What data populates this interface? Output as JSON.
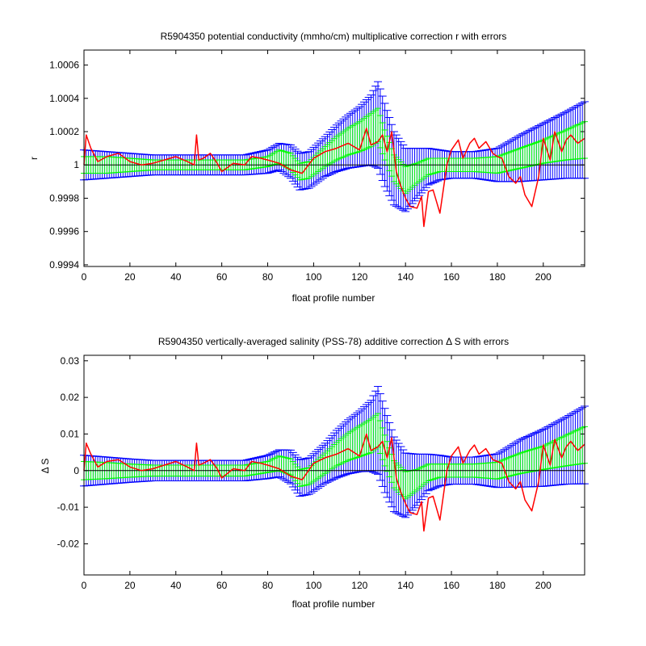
{
  "chart_data": [
    {
      "type": "line",
      "title": "R5904350 potential conductivity (mmho/cm) multiplicative correction r with errors",
      "xlabel": "float profile number",
      "ylabel": "r",
      "xlim": [
        0,
        218
      ],
      "ylim": [
        0.99939,
        1.00069
      ],
      "xticks": [
        0,
        20,
        40,
        60,
        80,
        100,
        120,
        140,
        160,
        180,
        200
      ],
      "xtick_labels": [
        "0",
        "20",
        "40",
        "60",
        "80",
        "100",
        "120",
        "140",
        "160",
        "180",
        "200"
      ],
      "yticks": [
        0.9994,
        0.9996,
        0.9998,
        1.0,
        1.0002,
        1.0004,
        1.0006
      ],
      "ytick_labels": [
        "0.9994",
        "0.9996",
        "0.9998",
        "1",
        "1.0002",
        "1.0004",
        "1.0006"
      ],
      "reference_line": 1.0,
      "colors": {
        "outer_error": "#0000ff",
        "inner_error": "#00ff00",
        "series": "#ff0000",
        "reference": "#000000"
      },
      "grid": false,
      "series": [
        {
          "x": [
            0,
            10,
            20,
            30,
            40,
            50,
            60,
            70,
            80,
            85,
            90,
            94,
            98,
            105,
            110,
            115,
            120,
            125,
            128,
            131,
            135,
            140,
            145,
            150,
            155,
            160,
            170,
            180,
            190,
            200,
            210,
            218
          ],
          "fit": [
            1.0,
            1.0,
            1.0,
            1.0,
            1.0,
            1.0,
            1.0,
            1.0,
            1.00002,
            1.00005,
            1.00002,
            0.99996,
            0.99997,
            1.00005,
            1.0001,
            1.00014,
            1.00017,
            1.00021,
            1.00024,
            1.00012,
            0.99998,
            0.99991,
            0.99995,
            0.99999,
            1.0,
            1.0,
            1.0,
            1.0,
            1.00004,
            1.00008,
            1.00012,
            1.00015
          ],
          "inner_err": [
            5e-05,
            5e-05,
            4e-05,
            3e-05,
            3e-05,
            3e-05,
            3e-05,
            3e-05,
            3e-05,
            4e-05,
            5e-05,
            5e-05,
            5e-05,
            6e-05,
            7e-05,
            8e-05,
            9e-05,
            0.0001,
            0.0001,
            9e-05,
            8e-05,
            8e-05,
            6e-05,
            5e-05,
            4e-05,
            4e-05,
            4e-05,
            5e-05,
            6e-05,
            7e-05,
            9e-05,
            0.00011
          ],
          "outer_err": [
            9e-05,
            8e-05,
            7e-05,
            6e-05,
            6e-05,
            6e-05,
            6e-05,
            6e-05,
            7e-05,
            8e-05,
            0.0001,
            0.00011,
            0.00011,
            0.00012,
            0.00014,
            0.00016,
            0.00018,
            0.00021,
            0.00026,
            0.00025,
            0.00022,
            0.00019,
            0.00015,
            0.00011,
            9e-05,
            8e-05,
            8e-05,
            0.0001,
            0.00014,
            0.00017,
            0.0002,
            0.00023
          ]
        },
        {
          "x": [
            0,
            1,
            3,
            6,
            10,
            15,
            20,
            25,
            30,
            35,
            40,
            45,
            48,
            49,
            50,
            52,
            55,
            58,
            60,
            65,
            70,
            73,
            77,
            80,
            85,
            90,
            95,
            100,
            105,
            110,
            115,
            120,
            123,
            125,
            128,
            130,
            132,
            134,
            136,
            138,
            140,
            142,
            145,
            147,
            148,
            150,
            152,
            155,
            158,
            160,
            163,
            165,
            168,
            170,
            172,
            175,
            178,
            180,
            182,
            185,
            188,
            190,
            192,
            195,
            198,
            200,
            203,
            205,
            208,
            210,
            212,
            215,
            218
          ],
          "values": [
            1.0,
            1.00018,
            1.0001,
            1.00002,
            1.00005,
            1.00007,
            1.00002,
            1.0,
            1.00001,
            1.00003,
            1.00005,
            1.00002,
            1.0,
            1.00018,
            1.00003,
            1.00004,
            1.00007,
            1.00001,
            0.99996,
            1.00001,
            1.0,
            1.00005,
            1.00004,
            1.00003,
            1.00001,
            0.99997,
            0.99995,
            1.00004,
            1.00008,
            1.0001,
            1.00013,
            1.00009,
            1.00022,
            1.00012,
            1.00014,
            1.00018,
            1.00008,
            1.0002,
            0.99996,
            0.99987,
            0.9998,
            0.99975,
            0.99974,
            0.99981,
            0.99963,
            0.99984,
            0.99985,
            0.99971,
            1.0,
            1.00009,
            1.00015,
            1.00004,
            1.00013,
            1.00016,
            1.0001,
            1.00014,
            1.00007,
            1.00005,
            1.00004,
            0.99993,
            0.99989,
            0.99993,
            0.99982,
            0.99975,
            0.99993,
            1.00016,
            1.00003,
            1.0002,
            1.00008,
            1.00015,
            1.00018,
            1.00013,
            1.00016
          ]
        }
      ]
    },
    {
      "type": "line",
      "title": "R5904350 vertically-averaged salinity (PSS-78) additive correction Δ S with errors",
      "xlabel": "float profile number",
      "ylabel": "Δ S",
      "xlim": [
        0,
        218
      ],
      "ylim": [
        -0.0285,
        0.0315
      ],
      "xticks": [
        0,
        20,
        40,
        60,
        80,
        100,
        120,
        140,
        160,
        180,
        200
      ],
      "xtick_labels": [
        "0",
        "20",
        "40",
        "60",
        "80",
        "100",
        "120",
        "140",
        "160",
        "180",
        "200"
      ],
      "yticks": [
        -0.02,
        -0.01,
        0.0,
        0.01,
        0.02,
        0.03
      ],
      "ytick_labels": [
        "-0.02",
        "-0.01",
        "0",
        "0.01",
        "0.02",
        "0.03"
      ],
      "reference_line": 0.0,
      "colors": {
        "outer_error": "#0000ff",
        "inner_error": "#00ff00",
        "series": "#ff0000",
        "reference": "#000000"
      },
      "grid": false,
      "series": [
        {
          "x": [
            0,
            10,
            20,
            30,
            40,
            50,
            60,
            70,
            80,
            85,
            90,
            94,
            98,
            105,
            110,
            115,
            120,
            125,
            128,
            131,
            135,
            140,
            145,
            150,
            155,
            160,
            170,
            180,
            190,
            200,
            210,
            218
          ],
          "fit": [
            0.0,
            0.0,
            0.0,
            0.0,
            0.0,
            0.0,
            0.0,
            0.0,
            0.001,
            0.002,
            0.001,
            -0.002,
            -0.0015,
            0.002,
            0.0045,
            0.0065,
            0.008,
            0.0095,
            0.011,
            0.0055,
            -0.001,
            -0.004,
            -0.0025,
            -0.0005,
            0.0,
            0.0,
            0.0,
            0.0,
            0.002,
            0.0035,
            0.0055,
            0.007
          ],
          "inner_err": [
            0.0025,
            0.0022,
            0.0018,
            0.0015,
            0.0015,
            0.0015,
            0.0015,
            0.0015,
            0.0015,
            0.002,
            0.0022,
            0.0023,
            0.0023,
            0.0028,
            0.0032,
            0.0037,
            0.0042,
            0.0046,
            0.0046,
            0.0042,
            0.0037,
            0.0037,
            0.0028,
            0.0023,
            0.0018,
            0.0018,
            0.0018,
            0.0023,
            0.0028,
            0.0032,
            0.0042,
            0.005
          ],
          "outer_err": [
            0.0042,
            0.0037,
            0.0032,
            0.0028,
            0.0028,
            0.0028,
            0.0028,
            0.0028,
            0.0032,
            0.0037,
            0.0046,
            0.005,
            0.005,
            0.0055,
            0.0065,
            0.0074,
            0.0083,
            0.0097,
            0.012,
            0.0115,
            0.0102,
            0.0088,
            0.007,
            0.005,
            0.0042,
            0.0037,
            0.0037,
            0.0046,
            0.0065,
            0.0078,
            0.0092,
            0.0106
          ]
        },
        {
          "x": [
            0,
            1,
            3,
            6,
            10,
            15,
            20,
            25,
            30,
            35,
            40,
            45,
            48,
            49,
            50,
            52,
            55,
            58,
            60,
            65,
            70,
            73,
            77,
            80,
            85,
            90,
            95,
            100,
            105,
            110,
            115,
            120,
            123,
            125,
            128,
            130,
            132,
            134,
            136,
            138,
            140,
            142,
            145,
            147,
            148,
            150,
            152,
            155,
            158,
            160,
            163,
            165,
            168,
            170,
            172,
            175,
            178,
            180,
            182,
            185,
            188,
            190,
            192,
            195,
            198,
            200,
            203,
            205,
            208,
            210,
            212,
            215,
            218
          ],
          "values": [
            0.0,
            0.0075,
            0.0045,
            0.001,
            0.0025,
            0.003,
            0.001,
            0.0,
            0.0005,
            0.0015,
            0.0025,
            0.001,
            0.0,
            0.0075,
            0.0015,
            0.002,
            0.003,
            0.0005,
            -0.002,
            0.0005,
            0.0,
            0.0025,
            0.002,
            0.0015,
            0.0005,
            -0.0015,
            -0.0025,
            0.002,
            0.0035,
            0.0045,
            0.006,
            0.004,
            0.01,
            0.0055,
            0.0065,
            0.008,
            0.0035,
            0.009,
            -0.002,
            -0.006,
            -0.009,
            -0.0115,
            -0.012,
            -0.0085,
            -0.0165,
            -0.0075,
            -0.007,
            -0.0135,
            0.0,
            0.004,
            0.0065,
            0.002,
            0.0055,
            0.007,
            0.0045,
            0.006,
            0.003,
            0.0025,
            0.002,
            -0.003,
            -0.005,
            -0.003,
            -0.008,
            -0.011,
            -0.003,
            0.007,
            0.0015,
            0.0085,
            0.0035,
            0.0065,
            0.008,
            0.0055,
            0.0072
          ]
        }
      ]
    }
  ]
}
